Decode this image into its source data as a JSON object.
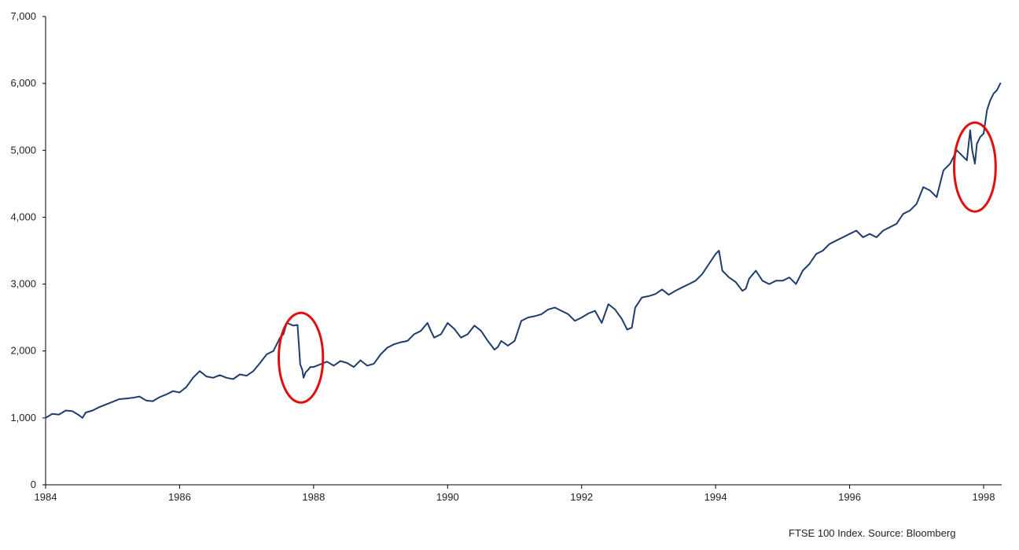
{
  "chart_data": {
    "type": "line",
    "title": "",
    "xlabel": "",
    "ylabel": "",
    "source_note": "FTSE 100 Index. Source: Bloomberg",
    "xlim": [
      1984.0,
      1998.27
    ],
    "ylim": [
      0,
      7000
    ],
    "x_ticks": [
      {
        "value": 1984,
        "label": "1984"
      },
      {
        "value": 1986,
        "label": "1986"
      },
      {
        "value": 1988,
        "label": "1988"
      },
      {
        "value": 1990,
        "label": "1990"
      },
      {
        "value": 1992,
        "label": "1992"
      },
      {
        "value": 1994,
        "label": "1994"
      },
      {
        "value": 1996,
        "label": "1996"
      },
      {
        "value": 1998,
        "label": "1998"
      }
    ],
    "y_ticks": [
      {
        "value": 0,
        "label": "0"
      },
      {
        "value": 1000,
        "label": "1,000"
      },
      {
        "value": 2000,
        "label": "2,000"
      },
      {
        "value": 3000,
        "label": "3,000"
      },
      {
        "value": 4000,
        "label": "4,000"
      },
      {
        "value": 5000,
        "label": "5,000"
      },
      {
        "value": 6000,
        "label": "6,000"
      },
      {
        "value": 7000,
        "label": "7,000"
      }
    ],
    "grid": false,
    "legend": "none",
    "colors": {
      "line": "#1f3d6b",
      "axis": "#000000",
      "highlight": "#e01010"
    },
    "series": [
      {
        "x": [
          1984.0,
          1984.1,
          1984.2,
          1984.3,
          1984.4,
          1984.5,
          1984.55,
          1984.6,
          1984.7,
          1984.8,
          1984.9,
          1985.0,
          1985.1,
          1985.2,
          1985.3,
          1985.4,
          1985.5,
          1985.6,
          1985.7,
          1985.8,
          1985.9,
          1986.0,
          1986.1,
          1986.2,
          1986.3,
          1986.35,
          1986.4,
          1986.5,
          1986.6,
          1986.7,
          1986.8,
          1986.9,
          1987.0,
          1987.1,
          1987.2,
          1987.3,
          1987.4,
          1987.5,
          1987.55,
          1987.6,
          1987.7,
          1987.76,
          1987.78,
          1987.8,
          1987.83,
          1987.85,
          1987.88,
          1987.92,
          1987.95,
          1988.0,
          1988.1,
          1988.2,
          1988.3,
          1988.4,
          1988.5,
          1988.6,
          1988.7,
          1988.8,
          1988.9,
          1989.0,
          1989.1,
          1989.2,
          1989.3,
          1989.4,
          1989.5,
          1989.6,
          1989.7,
          1989.75,
          1989.8,
          1989.9,
          1990.0,
          1990.1,
          1990.2,
          1990.3,
          1990.4,
          1990.5,
          1990.6,
          1990.7,
          1990.75,
          1990.8,
          1990.9,
          1991.0,
          1991.1,
          1991.2,
          1991.3,
          1991.4,
          1991.5,
          1991.6,
          1991.7,
          1991.8,
          1991.9,
          1992.0,
          1992.1,
          1992.2,
          1992.3,
          1992.4,
          1992.5,
          1992.6,
          1992.68,
          1992.75,
          1992.8,
          1992.9,
          1993.0,
          1993.1,
          1993.2,
          1993.3,
          1993.4,
          1993.5,
          1993.6,
          1993.7,
          1993.8,
          1993.9,
          1994.0,
          1994.05,
          1994.1,
          1994.2,
          1994.3,
          1994.4,
          1994.45,
          1994.5,
          1994.6,
          1994.7,
          1994.8,
          1994.9,
          1995.0,
          1995.1,
          1995.2,
          1995.3,
          1995.4,
          1995.5,
          1995.6,
          1995.7,
          1995.8,
          1995.9,
          1996.0,
          1996.1,
          1996.2,
          1996.3,
          1996.4,
          1996.5,
          1996.6,
          1996.7,
          1996.8,
          1996.9,
          1997.0,
          1997.1,
          1997.2,
          1997.3,
          1997.4,
          1997.5,
          1997.6,
          1997.7,
          1997.75,
          1997.8,
          1997.83,
          1997.87,
          1997.9,
          1997.95,
          1998.0,
          1998.05,
          1998.1,
          1998.15,
          1998.2,
          1998.25
        ],
        "values": [
          1000,
          1060,
          1050,
          1110,
          1100,
          1040,
          1000,
          1080,
          1110,
          1160,
          1200,
          1240,
          1280,
          1290,
          1300,
          1320,
          1260,
          1250,
          1310,
          1350,
          1400,
          1380,
          1460,
          1600,
          1700,
          1660,
          1620,
          1600,
          1640,
          1600,
          1580,
          1650,
          1630,
          1700,
          1820,
          1950,
          2000,
          2200,
          2250,
          2420,
          2380,
          2390,
          2100,
          1800,
          1720,
          1600,
          1680,
          1720,
          1760,
          1760,
          1800,
          1840,
          1780,
          1850,
          1820,
          1760,
          1860,
          1780,
          1810,
          1950,
          2050,
          2100,
          2130,
          2150,
          2250,
          2300,
          2420,
          2300,
          2200,
          2250,
          2420,
          2330,
          2200,
          2250,
          2380,
          2300,
          2150,
          2020,
          2060,
          2150,
          2080,
          2150,
          2450,
          2500,
          2520,
          2550,
          2620,
          2650,
          2600,
          2550,
          2450,
          2500,
          2560,
          2600,
          2420,
          2700,
          2620,
          2480,
          2320,
          2350,
          2650,
          2800,
          2820,
          2850,
          2920,
          2840,
          2900,
          2950,
          3000,
          3050,
          3150,
          3300,
          3450,
          3500,
          3200,
          3100,
          3030,
          2900,
          2930,
          3080,
          3200,
          3050,
          3000,
          3050,
          3050,
          3100,
          3000,
          3200,
          3300,
          3450,
          3500,
          3600,
          3650,
          3700,
          3750,
          3800,
          3700,
          3750,
          3700,
          3800,
          3850,
          3900,
          4050,
          4100,
          4200,
          4450,
          4400,
          4300,
          4700,
          4800,
          5000,
          4900,
          4850,
          5300,
          5000,
          4800,
          5100,
          5200,
          5250,
          5600,
          5750,
          5850,
          5900,
          6000
        ]
      }
    ],
    "annotations": [
      {
        "type": "ellipse",
        "cx": 1987.81,
        "cy": 1900,
        "rx": 0.33,
        "ry": 670
      },
      {
        "type": "ellipse",
        "cx": 1997.87,
        "cy": 4750,
        "rx": 0.31,
        "ry": 665
      }
    ]
  }
}
